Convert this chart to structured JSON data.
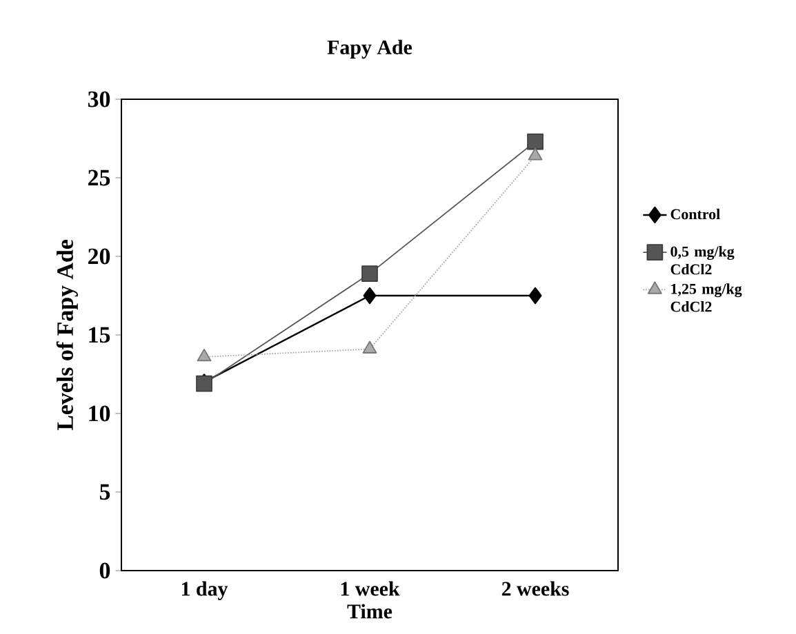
{
  "chart_data": {
    "type": "line",
    "title": "Fapy Ade",
    "xlabel": "Time",
    "ylabel": "Levels of Fapy Ade",
    "categories": [
      "1 day",
      "1 week",
      "2 weeks"
    ],
    "series": [
      {
        "name": "Control",
        "color": "#000000",
        "marker": "diamond",
        "line_style": "solid",
        "values": [
          12.0,
          17.5,
          17.5
        ]
      },
      {
        "name": "0,5 mg/kg CdCl2",
        "color": "#555555",
        "marker": "square",
        "line_style": "solid",
        "values": [
          11.9,
          18.9,
          27.3
        ]
      },
      {
        "name": "1,25 mg/kg CdCl2",
        "color": "#aaaaaa",
        "marker": "triangle",
        "line_style": "dotted",
        "values": [
          13.6,
          14.1,
          26.4
        ]
      }
    ],
    "ylim": [
      0,
      30
    ],
    "yticks": [
      0,
      5,
      10,
      15,
      20,
      25,
      30
    ],
    "grid": false,
    "legend": "right"
  }
}
